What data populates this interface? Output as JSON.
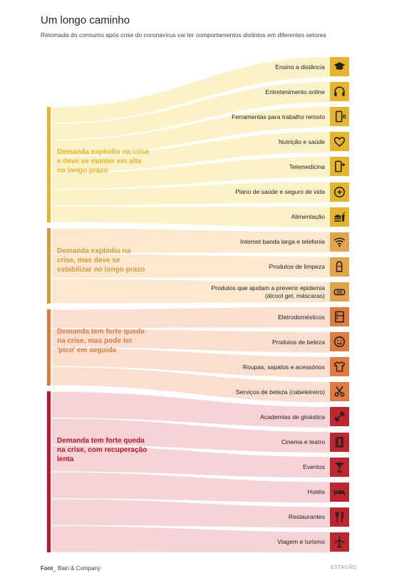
{
  "title": "Um longo caminho",
  "subtitle": "Retomada do consumo após crise do coronavírus vai ter comportamentos distintos em diferentes setores",
  "groups": [
    {
      "label": "Demanda explodiu na crise e deve se manter em alta no longo prazo",
      "color": "#e7b52b",
      "fill": "#fbf3c7",
      "icon_bg": "#e7b52b"
    },
    {
      "label": "Demanda explodiu na crise, mas deve se estabilizar no longo prazo",
      "color": "#d89a3a",
      "fill": "#fbe8cf",
      "icon_bg": "#e4a44a"
    },
    {
      "label": "Demanda tem forte queda na crise, mas pode ter 'pico' em seguida",
      "color": "#dd7a3e",
      "fill": "#fadfd0",
      "icon_bg": "#e17a3e"
    },
    {
      "label": "Demanda tem forte queda na crise, com recuperação lenta",
      "color": "#c0142b",
      "fill": "#f6d3d6",
      "icon_bg": "#c0262e"
    }
  ],
  "items": [
    {
      "label": "Ensino a distância",
      "group": 0,
      "icon": "graduation-cap-icon"
    },
    {
      "label": "Entretenimento online",
      "group": 0,
      "icon": "headphones-icon"
    },
    {
      "label": "Ferramentas para trabalho remoto",
      "group": 0,
      "icon": "phone-vibrate-icon"
    },
    {
      "label": "Nutrição e saúde",
      "group": 0,
      "icon": "heart-icon"
    },
    {
      "label": "Telemedicina",
      "group": 0,
      "icon": "phone-plus-icon"
    },
    {
      "label": "Plano de saúde e seguro de vida",
      "group": 0,
      "icon": "plus-circle-icon"
    },
    {
      "label": "Alimentação",
      "group": 0,
      "icon": "burger-drink-icon"
    },
    {
      "label": "Internet banda larga e telefonia",
      "group": 1,
      "icon": "wifi-icon"
    },
    {
      "label": "Produtos de limpeza",
      "group": 1,
      "icon": "bottle-icon"
    },
    {
      "label": "Produtos que ajudam a prevenir epidemia (álcool gel, máscaras)",
      "group": 1,
      "icon": "mask-icon"
    },
    {
      "label": "Eletrodomésticos",
      "group": 2,
      "icon": "fridge-icon"
    },
    {
      "label": "Produtos de beleza",
      "group": 2,
      "icon": "smiley-icon"
    },
    {
      "label": "Roupas, sapatos e acessórios",
      "group": 2,
      "icon": "tshirt-icon"
    },
    {
      "label": "Serviços de beleza (cabeleireiro)",
      "group": 2,
      "icon": "scissors-icon"
    },
    {
      "label": "Academias de ginástica",
      "group": 3,
      "icon": "dumbbell-icon"
    },
    {
      "label": "Cinema e teatro",
      "group": 3,
      "icon": "film-icon"
    },
    {
      "label": "Eventos",
      "group": 3,
      "icon": "cocktail-icon"
    },
    {
      "label": "Hotéis",
      "group": 3,
      "icon": "bed-icon"
    },
    {
      "label": "Restaurantes",
      "group": 3,
      "icon": "cutlery-icon"
    },
    {
      "label": "Viagem e turismo",
      "group": 3,
      "icon": "airplane-icon"
    }
  ],
  "footer": {
    "source_prefix": "Font",
    "source": "Bain & Company",
    "logo": "ESTADÃO"
  }
}
